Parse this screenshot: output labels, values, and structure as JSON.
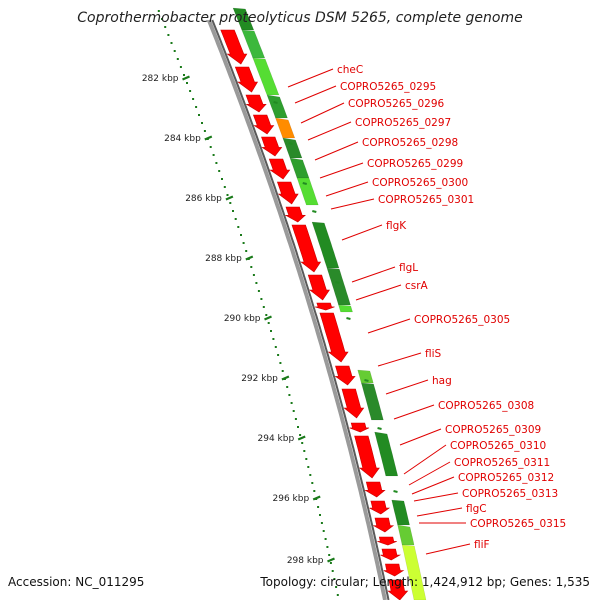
{
  "title": "Coprothermobacter proteolyticus DSM 5265, complete genome",
  "footer": {
    "accession": "Accession: NC_011295",
    "topology": "Topology: circular; Length: 1,424,912 bp; Genes: 1,535"
  },
  "colors": {
    "gene_red": "#ff0000",
    "gene_dark_red": "#cc0000",
    "label_red": "#e00000",
    "tick_green": "#1a7a1a",
    "track_dark_green": "#228b22",
    "track_light_green": "#55dd33",
    "track_orange": "#ff8c00",
    "track_yellow": "#ccff33",
    "backbone_gray": "#888888"
  },
  "scale_labels": [
    "282 kbp",
    "284 kbp",
    "286 kbp",
    "288 kbp",
    "290 kbp",
    "292 kbp",
    "294 kbp",
    "296 kbp",
    "298 kbp"
  ],
  "gene_labels": [
    "cheC",
    "COPRO5265_0295",
    "COPRO5265_0296",
    "COPRO5265_0297",
    "COPRO5265_0298",
    "COPRO5265_0299",
    "COPRO5265_0300",
    "COPRO5265_0301",
    "flgK",
    "flgL",
    "csrA",
    "COPRO5265_0305",
    "fliS",
    "hag",
    "COPRO5265_0308",
    "COPRO5265_0309",
    "COPRO5265_0310",
    "COPRO5265_0311",
    "COPRO5265_0312",
    "COPRO5265_0313",
    "flgC",
    "COPRO5265_0315",
    "fliF"
  ]
}
